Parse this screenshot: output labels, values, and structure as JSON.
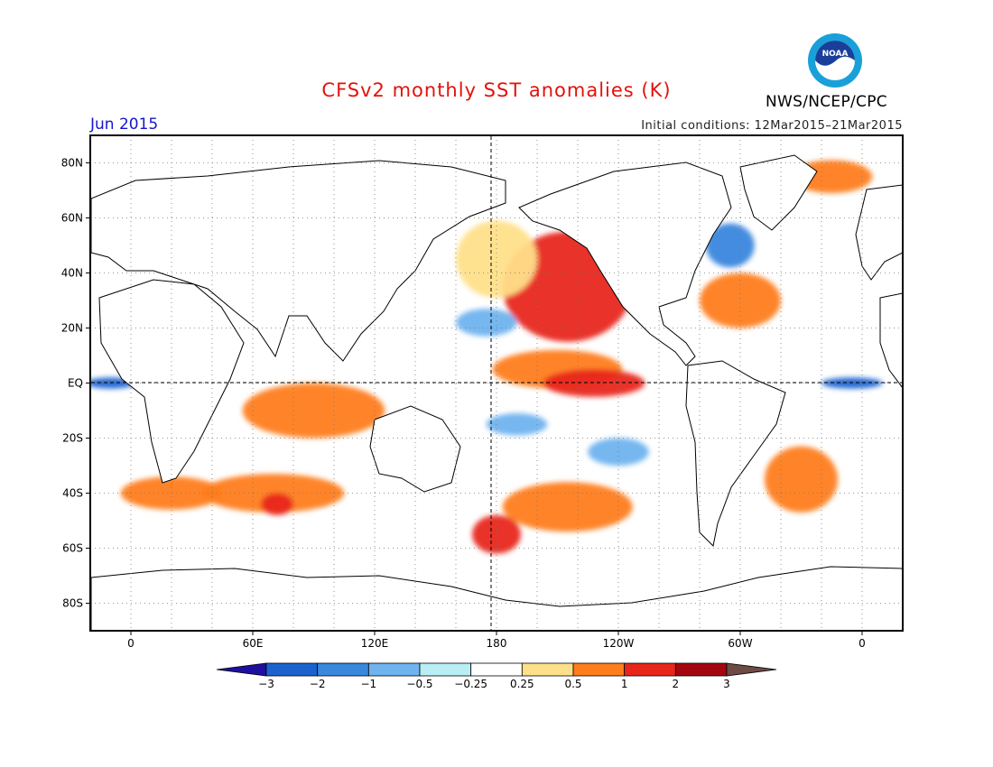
{
  "header": {
    "title": "CFSv2 monthly SST anomalies (K)",
    "period": "Jun 2015",
    "initial_conditions": "Initial conditions: 12Mar2015–21Mar2015",
    "agency": "NWS/NCEP/CPC",
    "logo_text": "NOAA",
    "logo_icon": "noaa-logo-icon"
  },
  "map": {
    "lat_labels": [
      "80N",
      "60N",
      "40N",
      "20N",
      "EQ",
      "20S",
      "40S",
      "60S",
      "80S"
    ],
    "lat_values": [
      80,
      60,
      40,
      20,
      0,
      -20,
      -40,
      -60,
      -80
    ],
    "lon_labels": [
      "0",
      "60E",
      "120E",
      "180",
      "120W",
      "60W",
      "0"
    ],
    "lon_values": [
      0,
      60,
      120,
      180,
      240,
      300,
      360
    ],
    "lon_range": [
      -20,
      380
    ],
    "lat_range": [
      -90,
      90
    ],
    "reference_lines": [
      "equator",
      "dateline"
    ]
  },
  "colorbar": {
    "labels": [
      "−3",
      "−2",
      "−1",
      "−0.5",
      "−0.25",
      "0.25",
      "0.5",
      "1",
      "2",
      "3"
    ],
    "colors": [
      "#1f0fa0",
      "#1c62cf",
      "#3a87de",
      "#6fb3ef",
      "#b8eef4",
      "#ffffff",
      "#ffe08a",
      "#ff7d1a",
      "#e8261a",
      "#a3060f",
      "#6e4b45"
    ]
  },
  "anomaly_regions": [
    {
      "lon": 215,
      "lat": 35,
      "rx": 32,
      "ry": 20,
      "level": "2"
    },
    {
      "lon": 210,
      "lat": 5,
      "rx": 32,
      "ry": 7,
      "level": "1"
    },
    {
      "lon": 228,
      "lat": 0,
      "rx": 25,
      "ry": 5,
      "level": "2"
    },
    {
      "lon": 180,
      "lat": 45,
      "rx": 20,
      "ry": 14,
      "level": "0.5"
    },
    {
      "lon": 300,
      "lat": 30,
      "rx": 20,
      "ry": 10,
      "level": "1"
    },
    {
      "lon": 90,
      "lat": -10,
      "rx": 35,
      "ry": 10,
      "level": "1"
    },
    {
      "lon": 70,
      "lat": -40,
      "rx": 35,
      "ry": 7,
      "level": "1"
    },
    {
      "lon": 72,
      "lat": -44,
      "rx": 8,
      "ry": 4,
      "level": "2"
    },
    {
      "lon": 215,
      "lat": -45,
      "rx": 32,
      "ry": 9,
      "level": "1"
    },
    {
      "lon": 180,
      "lat": -55,
      "rx": 12,
      "ry": 7,
      "level": "2"
    },
    {
      "lon": 330,
      "lat": -35,
      "rx": 18,
      "ry": 12,
      "level": "1"
    },
    {
      "lon": 20,
      "lat": -40,
      "rx": 25,
      "ry": 6,
      "level": "1"
    },
    {
      "lon": 345,
      "lat": 75,
      "rx": 20,
      "ry": 6,
      "level": "1"
    },
    {
      "lon": 175,
      "lat": 22,
      "rx": 15,
      "ry": 5,
      "level": "-0.5"
    },
    {
      "lon": 295,
      "lat": 50,
      "rx": 12,
      "ry": 8,
      "level": "-1"
    },
    {
      "lon": 355,
      "lat": 0,
      "rx": 15,
      "ry": 2,
      "level": "-2"
    },
    {
      "lon": -10,
      "lat": 0,
      "rx": 12,
      "ry": 2,
      "level": "-2"
    },
    {
      "lon": 190,
      "lat": -15,
      "rx": 15,
      "ry": 4,
      "level": "-0.5"
    },
    {
      "lon": 240,
      "lat": -25,
      "rx": 15,
      "ry": 5,
      "level": "-0.5"
    }
  ]
}
